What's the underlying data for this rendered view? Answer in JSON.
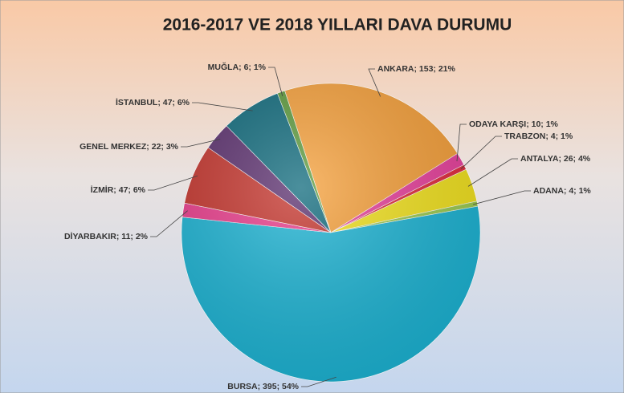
{
  "chart_data": {
    "type": "pie",
    "title": "2016-2017 VE 2018 YILLARI DAVA DURUMU",
    "values": [
      153,
      10,
      4,
      26,
      4,
      395,
      11,
      47,
      22,
      47,
      6
    ],
    "value_labels": [
      "ANKARA; 153; 21%",
      "ODAYA KARŞI; 10; 1%",
      "TRABZON; 4; 1%",
      "ANTALYA; 26; 4%",
      "ADANA; 4; 1%",
      "BURSA; 395; 54%",
      "DİYARBAKIR; 11; 2%",
      "İZMİR; 47; 6%",
      "GENEL MERKEZ; 22; 3%",
      "İSTANBUL; 47; 6%",
      "MUĞLA; 6; 1%"
    ],
    "colors": [
      "#f6a03a",
      "#e8409c",
      "#e22a3c",
      "#f2e21e",
      "#9ccb50",
      "#1cb4d4",
      "#ea3c8c",
      "#c5342c",
      "#5b2f6e",
      "#0f6a7c",
      "#5c9a3c"
    ]
  }
}
